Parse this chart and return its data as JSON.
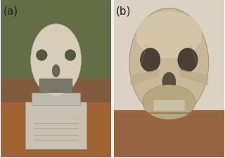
{
  "background_color": "#f0f0f0",
  "panel_a_label": "(a)",
  "panel_b_label": "(b)",
  "label_fontsize": 11,
  "label_color": "#222222",
  "fig_width": 3.2,
  "fig_height": 2.26,
  "dpi": 100,
  "img_a_color_top": "#8a9a7a",
  "img_b_color_top": "#c8b090",
  "border_color": "#aaaaaa"
}
